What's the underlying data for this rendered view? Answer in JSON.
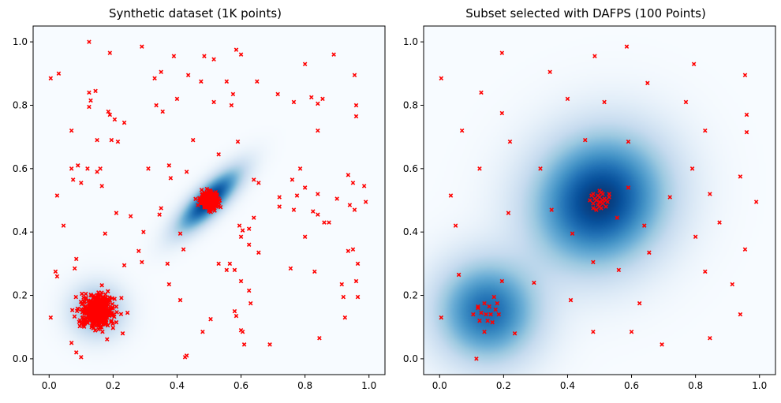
{
  "chart_data": [
    {
      "type": "scatter",
      "title": "Synthetic dataset (1K points)",
      "xlabel": "",
      "ylabel": "",
      "xlim": [
        -0.05,
        1.05
      ],
      "ylim": [
        -0.05,
        1.05
      ],
      "xticks": [
        0.0,
        0.2,
        0.4,
        0.6,
        0.8,
        1.0
      ],
      "yticks": [
        0.0,
        0.2,
        0.4,
        0.6,
        0.8,
        1.0
      ],
      "tick_labels": [
        "0.0",
        "0.2",
        "0.4",
        "0.6",
        "0.8",
        "1.0"
      ],
      "grid": false,
      "background": "density heatmap (Blues colormap)",
      "marker_color": "#ff0000",
      "marker": "x",
      "density_blobs": [
        {
          "cx": 0.5,
          "cy": 0.5,
          "sx": 0.06,
          "sy": 0.06,
          "rho": 0.8,
          "weight": 1.0
        },
        {
          "cx": 0.15,
          "cy": 0.15,
          "sx": 0.05,
          "sy": 0.05,
          "rho": 0.0,
          "weight": 0.45
        }
      ],
      "clusters": [
        {
          "center": [
            0.5,
            0.5
          ],
          "approx_count": 400,
          "spread": 0.012
        },
        {
          "center": [
            0.15,
            0.15
          ],
          "approx_count": 500,
          "spread": 0.025
        }
      ],
      "points": [
        [
          0.005,
          0.885
        ],
        [
          0.03,
          0.9
        ],
        [
          0.125,
          1.0
        ],
        [
          0.19,
          0.965
        ],
        [
          0.29,
          0.985
        ],
        [
          0.39,
          0.955
        ],
        [
          0.485,
          0.955
        ],
        [
          0.515,
          0.945
        ],
        [
          0.585,
          0.975
        ],
        [
          0.6,
          0.96
        ],
        [
          0.8,
          0.93
        ],
        [
          0.89,
          0.96
        ],
        [
          0.955,
          0.895
        ],
        [
          0.35,
          0.905
        ],
        [
          0.33,
          0.885
        ],
        [
          0.435,
          0.895
        ],
        [
          0.4,
          0.82
        ],
        [
          0.475,
          0.875
        ],
        [
          0.555,
          0.875
        ],
        [
          0.575,
          0.835
        ],
        [
          0.65,
          0.875
        ],
        [
          0.57,
          0.8
        ],
        [
          0.515,
          0.81
        ],
        [
          0.715,
          0.835
        ],
        [
          0.765,
          0.81
        ],
        [
          0.82,
          0.825
        ],
        [
          0.84,
          0.805
        ],
        [
          0.855,
          0.82
        ],
        [
          0.96,
          0.8
        ],
        [
          0.96,
          0.765
        ],
        [
          0.125,
          0.84
        ],
        [
          0.13,
          0.815
        ],
        [
          0.145,
          0.845
        ],
        [
          0.125,
          0.795
        ],
        [
          0.185,
          0.78
        ],
        [
          0.19,
          0.77
        ],
        [
          0.205,
          0.755
        ],
        [
          0.235,
          0.745
        ],
        [
          0.335,
          0.8
        ],
        [
          0.355,
          0.78
        ],
        [
          0.07,
          0.72
        ],
        [
          0.15,
          0.69
        ],
        [
          0.195,
          0.69
        ],
        [
          0.215,
          0.685
        ],
        [
          0.45,
          0.69
        ],
        [
          0.59,
          0.685
        ],
        [
          0.84,
          0.72
        ],
        [
          0.07,
          0.6
        ],
        [
          0.09,
          0.61
        ],
        [
          0.12,
          0.6
        ],
        [
          0.15,
          0.59
        ],
        [
          0.16,
          0.6
        ],
        [
          0.075,
          0.565
        ],
        [
          0.1,
          0.555
        ],
        [
          0.165,
          0.545
        ],
        [
          0.31,
          0.6
        ],
        [
          0.375,
          0.61
        ],
        [
          0.38,
          0.57
        ],
        [
          0.43,
          0.59
        ],
        [
          0.53,
          0.645
        ],
        [
          0.64,
          0.565
        ],
        [
          0.655,
          0.555
        ],
        [
          0.76,
          0.565
        ],
        [
          0.785,
          0.6
        ],
        [
          0.8,
          0.54
        ],
        [
          0.84,
          0.52
        ],
        [
          0.9,
          0.505
        ],
        [
          0.935,
          0.58
        ],
        [
          0.95,
          0.555
        ],
        [
          0.985,
          0.545
        ],
        [
          0.025,
          0.515
        ],
        [
          0.72,
          0.51
        ],
        [
          0.72,
          0.48
        ],
        [
          0.775,
          0.515
        ],
        [
          0.21,
          0.46
        ],
        [
          0.255,
          0.45
        ],
        [
          0.35,
          0.475
        ],
        [
          0.345,
          0.455
        ],
        [
          0.045,
          0.42
        ],
        [
          0.175,
          0.395
        ],
        [
          0.295,
          0.4
        ],
        [
          0.595,
          0.42
        ],
        [
          0.605,
          0.405
        ],
        [
          0.625,
          0.41
        ],
        [
          0.64,
          0.445
        ],
        [
          0.765,
          0.47
        ],
        [
          0.825,
          0.465
        ],
        [
          0.84,
          0.455
        ],
        [
          0.8,
          0.385
        ],
        [
          0.86,
          0.43
        ],
        [
          0.875,
          0.43
        ],
        [
          0.94,
          0.485
        ],
        [
          0.955,
          0.47
        ],
        [
          0.99,
          0.495
        ],
        [
          0.41,
          0.395
        ],
        [
          0.42,
          0.345
        ],
        [
          0.53,
          0.3
        ],
        [
          0.555,
          0.28
        ],
        [
          0.565,
          0.3
        ],
        [
          0.6,
          0.385
        ],
        [
          0.625,
          0.36
        ],
        [
          0.655,
          0.335
        ],
        [
          0.085,
          0.315
        ],
        [
          0.08,
          0.285
        ],
        [
          0.02,
          0.275
        ],
        [
          0.025,
          0.26
        ],
        [
          0.235,
          0.295
        ],
        [
          0.28,
          0.34
        ],
        [
          0.29,
          0.305
        ],
        [
          0.37,
          0.3
        ],
        [
          0.375,
          0.235
        ],
        [
          0.41,
          0.185
        ],
        [
          0.58,
          0.28
        ],
        [
          0.6,
          0.245
        ],
        [
          0.625,
          0.215
        ],
        [
          0.63,
          0.175
        ],
        [
          0.755,
          0.285
        ],
        [
          0.83,
          0.275
        ],
        [
          0.915,
          0.235
        ],
        [
          0.92,
          0.195
        ],
        [
          0.935,
          0.34
        ],
        [
          0.95,
          0.345
        ],
        [
          0.965,
          0.3
        ],
        [
          0.96,
          0.245
        ],
        [
          0.965,
          0.195
        ],
        [
          0.005,
          0.13
        ],
        [
          0.07,
          0.05
        ],
        [
          0.085,
          0.02
        ],
        [
          0.1,
          0.005
        ],
        [
          0.23,
          0.08
        ],
        [
          0.21,
          0.115
        ],
        [
          0.245,
          0.145
        ],
        [
          0.48,
          0.085
        ],
        [
          0.505,
          0.125
        ],
        [
          0.6,
          0.09
        ],
        [
          0.605,
          0.085
        ],
        [
          0.61,
          0.045
        ],
        [
          0.69,
          0.045
        ],
        [
          0.845,
          0.065
        ],
        [
          0.925,
          0.13
        ],
        [
          0.425,
          0.005
        ],
        [
          0.43,
          0.01
        ],
        [
          0.585,
          0.135
        ],
        [
          0.58,
          0.15
        ],
        [
          0.48,
          0.52
        ],
        [
          0.52,
          0.49
        ],
        [
          0.51,
          0.51
        ],
        [
          0.49,
          0.48
        ],
        [
          0.5,
          0.53
        ],
        [
          0.53,
          0.505
        ],
        [
          0.47,
          0.5
        ],
        [
          0.5,
          0.47
        ]
      ]
    },
    {
      "type": "scatter",
      "title": "Subset selected with DAFPS (100 Points)",
      "xlabel": "",
      "ylabel": "",
      "xlim": [
        -0.05,
        1.05
      ],
      "ylim": [
        -0.05,
        1.05
      ],
      "xticks": [
        0.0,
        0.2,
        0.4,
        0.6,
        0.8,
        1.0
      ],
      "yticks": [
        0.0,
        0.2,
        0.4,
        0.6,
        0.8,
        1.0
      ],
      "tick_labels": [
        "0.0",
        "0.2",
        "0.4",
        "0.6",
        "0.8",
        "1.0"
      ],
      "grid": false,
      "background": "density heatmap (Blues colormap)",
      "marker_color": "#ff0000",
      "marker": "x",
      "density_blobs": [
        {
          "cx": 0.5,
          "cy": 0.5,
          "sx": 0.13,
          "sy": 0.13,
          "rho": 0.1,
          "weight": 1.0
        },
        {
          "cx": 0.15,
          "cy": 0.15,
          "sx": 0.1,
          "sy": 0.1,
          "rho": 0.0,
          "weight": 0.75
        }
      ],
      "points": [
        [
          0.005,
          0.885
        ],
        [
          0.13,
          0.84
        ],
        [
          0.195,
          0.965
        ],
        [
          0.345,
          0.905
        ],
        [
          0.485,
          0.955
        ],
        [
          0.585,
          0.985
        ],
        [
          0.795,
          0.93
        ],
        [
          0.955,
          0.895
        ],
        [
          0.195,
          0.775
        ],
        [
          0.4,
          0.82
        ],
        [
          0.515,
          0.81
        ],
        [
          0.65,
          0.87
        ],
        [
          0.77,
          0.81
        ],
        [
          0.96,
          0.77
        ],
        [
          0.07,
          0.72
        ],
        [
          0.22,
          0.685
        ],
        [
          0.455,
          0.69
        ],
        [
          0.59,
          0.685
        ],
        [
          0.83,
          0.72
        ],
        [
          0.96,
          0.715
        ],
        [
          0.125,
          0.6
        ],
        [
          0.315,
          0.6
        ],
        [
          0.79,
          0.6
        ],
        [
          0.94,
          0.575
        ],
        [
          0.035,
          0.515
        ],
        [
          0.59,
          0.54
        ],
        [
          0.72,
          0.51
        ],
        [
          0.845,
          0.52
        ],
        [
          0.99,
          0.495
        ],
        [
          0.215,
          0.46
        ],
        [
          0.35,
          0.47
        ],
        [
          0.05,
          0.42
        ],
        [
          0.415,
          0.395
        ],
        [
          0.555,
          0.445
        ],
        [
          0.64,
          0.42
        ],
        [
          0.8,
          0.385
        ],
        [
          0.875,
          0.43
        ],
        [
          0.655,
          0.335
        ],
        [
          0.06,
          0.265
        ],
        [
          0.195,
          0.245
        ],
        [
          0.295,
          0.24
        ],
        [
          0.48,
          0.305
        ],
        [
          0.56,
          0.28
        ],
        [
          0.83,
          0.275
        ],
        [
          0.955,
          0.345
        ],
        [
          0.915,
          0.235
        ],
        [
          0.41,
          0.185
        ],
        [
          0.625,
          0.175
        ],
        [
          0.94,
          0.14
        ],
        [
          0.005,
          0.13
        ],
        [
          0.235,
          0.08
        ],
        [
          0.48,
          0.085
        ],
        [
          0.6,
          0.085
        ],
        [
          0.695,
          0.045
        ],
        [
          0.845,
          0.065
        ],
        [
          0.115,
          0.0
        ],
        [
          0.14,
          0.085
        ],
        [
          0.14,
          0.175
        ],
        [
          0.155,
          0.165
        ],
        [
          0.17,
          0.195
        ],
        [
          0.12,
          0.165
        ],
        [
          0.16,
          0.14
        ],
        [
          0.145,
          0.14
        ],
        [
          0.175,
          0.155
        ],
        [
          0.13,
          0.145
        ],
        [
          0.105,
          0.14
        ],
        [
          0.185,
          0.14
        ],
        [
          0.15,
          0.12
        ],
        [
          0.165,
          0.115
        ],
        [
          0.125,
          0.12
        ],
        [
          0.12,
          0.16
        ],
        [
          0.18,
          0.175
        ],
        [
          0.48,
          0.52
        ],
        [
          0.49,
          0.5
        ],
        [
          0.5,
          0.51
        ],
        [
          0.51,
          0.49
        ],
        [
          0.52,
          0.5
        ],
        [
          0.5,
          0.48
        ],
        [
          0.48,
          0.49
        ],
        [
          0.51,
          0.52
        ],
        [
          0.53,
          0.51
        ],
        [
          0.47,
          0.5
        ],
        [
          0.5,
          0.53
        ],
        [
          0.49,
          0.47
        ],
        [
          0.52,
          0.48
        ],
        [
          0.5,
          0.495
        ],
        [
          0.485,
          0.505
        ],
        [
          0.515,
          0.505
        ],
        [
          0.495,
          0.515
        ],
        [
          0.505,
          0.475
        ],
        [
          0.475,
          0.515
        ],
        [
          0.525,
          0.495
        ],
        [
          0.505,
          0.525
        ],
        [
          0.495,
          0.485
        ],
        [
          0.51,
          0.5
        ],
        [
          0.48,
          0.475
        ],
        [
          0.53,
          0.52
        ]
      ]
    }
  ]
}
